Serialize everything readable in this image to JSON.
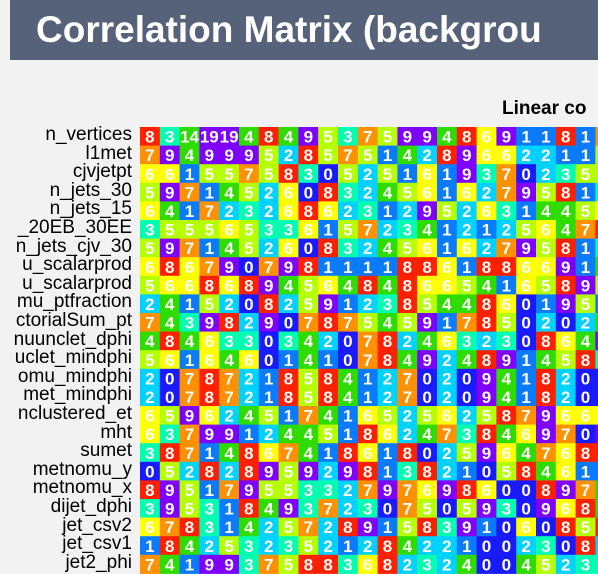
{
  "header": {
    "title": "Correlation Matrix (backgrou",
    "subtitle": "Linear co"
  },
  "chart_data": {
    "type": "heatmap",
    "title": "Correlation Matrix (backgrou",
    "subtitle": "Linear co",
    "rows": [
      "n_vertices",
      "l1met",
      "cjvjetpt",
      "n_jets_30",
      "n_jets_15",
      "_20EB_30EE",
      "n_jets_cjv_30",
      "u_scalarprod",
      "u_scalarprod",
      "mu_ptfraction",
      "ctorialSum_pt",
      "nuunclet_dphi",
      "uclet_mindphi",
      "omu_mindphi",
      "met_mindphi",
      "nclustered_et",
      "mht",
      "sumet",
      "metnomu_y",
      "metnomu_x",
      "dijet_dphi",
      "jet_csv2",
      "jet_csv1",
      "jet2_phi"
    ],
    "n_columns": 24,
    "values": [
      [
        8,
        3,
        14,
        19,
        19,
        4,
        8,
        4,
        9,
        5,
        3,
        7,
        5,
        9,
        9,
        4,
        8,
        6,
        9,
        1,
        1,
        8,
        1,
        7
      ],
      [
        7,
        9,
        4,
        9,
        9,
        9,
        5,
        2,
        8,
        5,
        7,
        5,
        1,
        4,
        2,
        8,
        9,
        6,
        6,
        2,
        2,
        1,
        1,
        5
      ],
      [
        6,
        6,
        1,
        5,
        5,
        7,
        5,
        8,
        3,
        0,
        5,
        2,
        5,
        1,
        6,
        1,
        9,
        3,
        7,
        0,
        2,
        3,
        5,
        5
      ],
      [
        5,
        9,
        7,
        1,
        4,
        5,
        2,
        6,
        0,
        8,
        3,
        2,
        4,
        5,
        6,
        1,
        6,
        2,
        7,
        9,
        5,
        8,
        1,
        3
      ],
      [
        6,
        4,
        1,
        7,
        2,
        3,
        2,
        6,
        8,
        6,
        2,
        3,
        1,
        2,
        9,
        5,
        2,
        6,
        3,
        1,
        4,
        4,
        5,
        6
      ],
      [
        3,
        5,
        5,
        5,
        6,
        5,
        3,
        3,
        6,
        1,
        5,
        7,
        2,
        3,
        4,
        1,
        2,
        1,
        2,
        5,
        6,
        4,
        7,
        8
      ],
      [
        5,
        9,
        7,
        1,
        4,
        5,
        2,
        6,
        0,
        8,
        3,
        2,
        4,
        5,
        6,
        1,
        6,
        2,
        7,
        9,
        5,
        8,
        1,
        3
      ],
      [
        6,
        8,
        6,
        7,
        9,
        0,
        7,
        9,
        8,
        1,
        1,
        1,
        1,
        8,
        8,
        6,
        1,
        8,
        8,
        6,
        6,
        9,
        1,
        4
      ],
      [
        5,
        6,
        6,
        8,
        6,
        8,
        9,
        4,
        5,
        6,
        4,
        8,
        4,
        8,
        6,
        6,
        5,
        4,
        1,
        6,
        5,
        8,
        9,
        5
      ],
      [
        2,
        4,
        1,
        5,
        2,
        0,
        8,
        2,
        5,
        9,
        1,
        2,
        3,
        8,
        5,
        4,
        4,
        8,
        6,
        0,
        1,
        9,
        5,
        1
      ],
      [
        7,
        4,
        3,
        9,
        8,
        2,
        9,
        0,
        7,
        8,
        7,
        5,
        4,
        5,
        9,
        1,
        7,
        8,
        5,
        0,
        2,
        0,
        2,
        4
      ],
      [
        4,
        8,
        4,
        6,
        3,
        3,
        0,
        3,
        4,
        2,
        0,
        7,
        8,
        2,
        4,
        6,
        3,
        2,
        3,
        0,
        8,
        6,
        4,
        9
      ],
      [
        5,
        6,
        1,
        6,
        4,
        6,
        0,
        1,
        4,
        1,
        0,
        7,
        8,
        4,
        9,
        2,
        4,
        8,
        9,
        1,
        4,
        5,
        8,
        3
      ],
      [
        2,
        0,
        7,
        8,
        7,
        2,
        1,
        8,
        5,
        8,
        4,
        1,
        2,
        7,
        0,
        2,
        0,
        9,
        4,
        1,
        8,
        2,
        0,
        0
      ],
      [
        2,
        0,
        7,
        8,
        7,
        2,
        1,
        8,
        5,
        8,
        4,
        1,
        2,
        7,
        0,
        2,
        0,
        9,
        4,
        1,
        8,
        2,
        0,
        0
      ],
      [
        6,
        5,
        9,
        6,
        2,
        4,
        5,
        1,
        7,
        4,
        1,
        6,
        5,
        2,
        5,
        6,
        2,
        5,
        8,
        7,
        9,
        6,
        6,
        6
      ],
      [
        6,
        3,
        7,
        9,
        9,
        1,
        2,
        4,
        4,
        5,
        1,
        8,
        6,
        2,
        4,
        7,
        3,
        8,
        4,
        6,
        9,
        7,
        0,
        9
      ],
      [
        3,
        8,
        7,
        1,
        4,
        8,
        6,
        7,
        4,
        1,
        8,
        6,
        1,
        8,
        0,
        2,
        5,
        9,
        6,
        4,
        7,
        6,
        8,
        8
      ],
      [
        0,
        5,
        2,
        8,
        2,
        8,
        9,
        5,
        9,
        2,
        9,
        8,
        1,
        3,
        8,
        2,
        1,
        0,
        5,
        8,
        4,
        6,
        1,
        1
      ],
      [
        8,
        9,
        5,
        1,
        7,
        9,
        5,
        5,
        3,
        3,
        2,
        7,
        9,
        7,
        6,
        9,
        8,
        6,
        0,
        0,
        8,
        9,
        7,
        4
      ],
      [
        3,
        9,
        5,
        3,
        1,
        8,
        4,
        9,
        3,
        7,
        2,
        3,
        0,
        7,
        5,
        0,
        5,
        9,
        3,
        0,
        9,
        6,
        8,
        4
      ],
      [
        6,
        7,
        8,
        3,
        1,
        4,
        2,
        5,
        7,
        2,
        8,
        9,
        1,
        5,
        8,
        3,
        9,
        1,
        0,
        6,
        0,
        8,
        5,
        8
      ],
      [
        1,
        8,
        4,
        2,
        5,
        3,
        2,
        3,
        5,
        2,
        1,
        2,
        8,
        4,
        2,
        2,
        1,
        0,
        0,
        2,
        3,
        0,
        8,
        2
      ],
      [
        7,
        4,
        1,
        9,
        9,
        3,
        7,
        5,
        8,
        8,
        3,
        6,
        8,
        2,
        3,
        2,
        4,
        0,
        0,
        4,
        5,
        2,
        3,
        3
      ]
    ],
    "palette": [
      "#1a1aff",
      "#0a7bff",
      "#00d2ff",
      "#00ffb0",
      "#2fdc00",
      "#b6ff00",
      "#ffff00",
      "#ff9000",
      "#ff2000",
      "#8000ff"
    ]
  }
}
